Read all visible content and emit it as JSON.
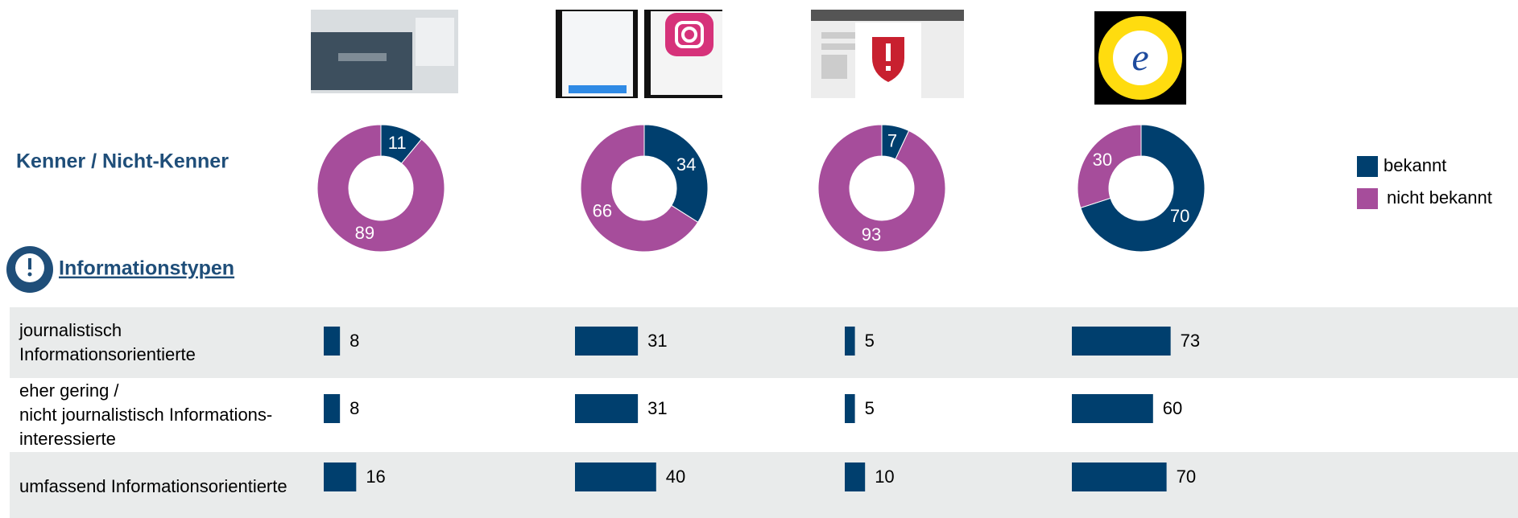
{
  "chart_data": [
    {
      "type": "donut",
      "title": "Kenner / Nicht-Kenner",
      "categories": [
        "bekannt",
        "nicht bekannt"
      ],
      "colors": [
        "#003f6e",
        "#a64d9b"
      ],
      "series": [
        {
          "values": [
            11,
            89
          ]
        },
        {
          "values": [
            34,
            66
          ]
        },
        {
          "values": [
            7,
            93
          ]
        },
        {
          "values": [
            70,
            30
          ]
        }
      ]
    },
    {
      "type": "bar",
      "title": "Informationstypen",
      "color": "#003f6e",
      "categories": [
        [
          "journalistisch",
          "Informationsorientierte"
        ],
        [
          "eher gering /",
          "nicht journalistisch Informations-",
          "interessierte"
        ],
        [
          "umfassend Informationsorientierte"
        ]
      ],
      "series": [
        {
          "values": [
            8,
            8,
            16
          ],
          "xlim": [
            0,
            100
          ]
        },
        {
          "values": [
            31,
            31,
            40
          ],
          "xlim": [
            0,
            100
          ]
        },
        {
          "values": [
            5,
            5,
            10
          ],
          "xlim": [
            0,
            100
          ]
        },
        {
          "values": [
            73,
            60,
            70
          ],
          "xlim": [
            0,
            150
          ]
        }
      ]
    }
  ]
}
